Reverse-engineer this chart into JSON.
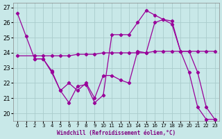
{
  "xlabel": "Windchill (Refroidissement éolien,°C)",
  "background_color": "#c8e8e8",
  "grid_color": "#aacccc",
  "line_color": "#990099",
  "xlim": [
    -0.5,
    23.5
  ],
  "ylim": [
    19.5,
    27.3
  ],
  "yticks": [
    20,
    21,
    22,
    23,
    24,
    25,
    26,
    27
  ],
  "xticks": [
    0,
    1,
    2,
    3,
    4,
    5,
    6,
    7,
    8,
    9,
    10,
    11,
    12,
    13,
    14,
    15,
    16,
    17,
    18,
    19,
    20,
    21,
    22,
    23
  ],
  "series": [
    {
      "x": [
        0,
        1,
        2,
        3,
        4,
        5,
        6,
        7,
        8,
        9,
        10,
        11,
        12,
        13,
        14,
        15,
        16,
        17,
        18,
        19,
        20,
        21,
        22,
        23
      ],
      "y": [
        26.6,
        25.1,
        23.6,
        23.6,
        22.7,
        21.5,
        22.0,
        21.5,
        22.0,
        21.0,
        22.5,
        22.5,
        22.2,
        22.0,
        24.1,
        24.0,
        26.0,
        26.2,
        26.1,
        24.1,
        24.1,
        22.7,
        20.4,
        19.6
      ]
    },
    {
      "x": [
        0,
        2,
        3,
        4,
        5,
        6,
        7,
        8,
        9,
        10,
        11,
        12,
        13,
        14,
        15,
        16,
        17,
        18,
        19,
        20,
        21,
        22,
        23
      ],
      "y": [
        23.8,
        23.8,
        23.8,
        23.8,
        23.8,
        23.8,
        23.9,
        23.9,
        23.9,
        24.0,
        24.0,
        24.0,
        24.0,
        24.0,
        24.0,
        24.1,
        24.1,
        24.1,
        24.1,
        24.1,
        24.1,
        24.1,
        24.1
      ]
    },
    {
      "x": [
        2,
        3,
        4,
        5,
        6,
        7,
        8,
        9,
        10,
        11,
        12,
        13,
        14,
        15,
        16,
        17,
        18,
        19,
        20,
        21,
        22,
        23
      ],
      "y": [
        23.6,
        23.6,
        22.8,
        21.5,
        20.7,
        21.8,
        21.9,
        20.7,
        21.2,
        25.2,
        25.2,
        25.2,
        26.0,
        26.8,
        26.5,
        26.2,
        25.9,
        24.1,
        22.7,
        20.4,
        19.6,
        19.6
      ]
    }
  ]
}
